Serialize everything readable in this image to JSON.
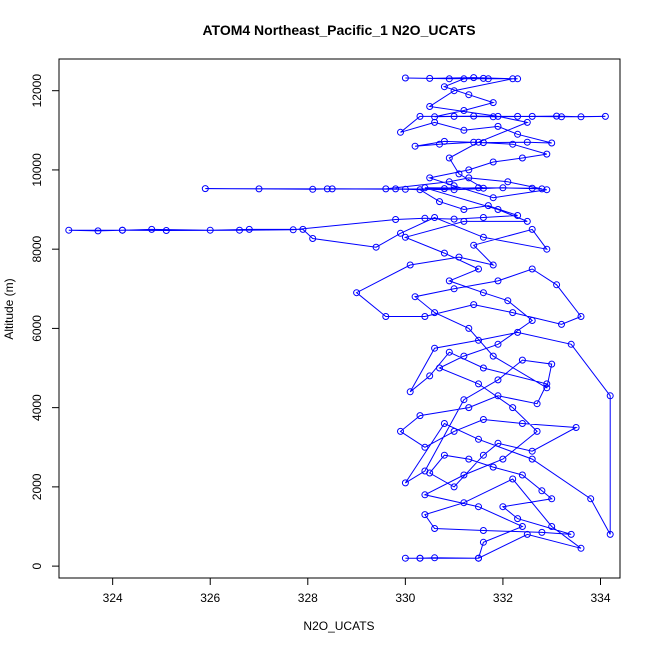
{
  "chart_data": {
    "type": "line",
    "title": "ATOM4 Northeast_Pacific_1 N2O_UCATS",
    "xlabel": "N2O_UCATS",
    "ylabel": "Altitude (m)",
    "xlim": [
      322.9,
      334.4
    ],
    "ylim": [
      -300,
      12800
    ],
    "xticks": [
      324,
      326,
      328,
      330,
      332,
      334
    ],
    "yticks": [
      0,
      2000,
      4000,
      6000,
      8000,
      10000,
      12000
    ],
    "grid": false,
    "legend": "none",
    "series_color": "#0000ff",
    "marker": "open-circle",
    "series": [
      {
        "points": [
          [
            330.0,
            200
          ],
          [
            330.3,
            200
          ],
          [
            330.6,
            210
          ],
          [
            331.5,
            200
          ],
          [
            332.5,
            800
          ],
          [
            333.6,
            450
          ],
          [
            333.0,
            1000
          ],
          [
            332.2,
            2200
          ],
          [
            331.2,
            1600
          ],
          [
            330.4,
            1300
          ],
          [
            330.6,
            950
          ],
          [
            331.6,
            900
          ],
          [
            332.8,
            850
          ],
          [
            333.4,
            800
          ],
          [
            332.3,
            1200
          ],
          [
            332.0,
            1500
          ],
          [
            333.0,
            1700
          ],
          [
            332.8,
            1900
          ],
          [
            332.4,
            2300
          ],
          [
            331.8,
            2500
          ],
          [
            331.3,
            2700
          ],
          [
            330.8,
            2800
          ],
          [
            330.5,
            2350
          ],
          [
            331.0,
            2000
          ],
          [
            331.6,
            2800
          ],
          [
            331.9,
            3100
          ],
          [
            332.6,
            2900
          ],
          [
            333.5,
            3500
          ],
          [
            332.4,
            3600
          ],
          [
            331.6,
            3700
          ],
          [
            331.0,
            3400
          ],
          [
            330.4,
            3000
          ],
          [
            329.9,
            3400
          ],
          [
            330.3,
            3800
          ],
          [
            331.3,
            4000
          ],
          [
            331.9,
            4300
          ],
          [
            332.7,
            4100
          ],
          [
            332.9,
            4600
          ],
          [
            331.6,
            5000
          ],
          [
            330.9,
            5400
          ],
          [
            330.5,
            4800
          ],
          [
            330.1,
            4400
          ],
          [
            330.6,
            5500
          ],
          [
            331.5,
            5700
          ],
          [
            332.3,
            5900
          ],
          [
            333.4,
            5600
          ],
          [
            334.2,
            4300
          ],
          [
            334.2,
            800
          ],
          [
            333.8,
            1700
          ],
          [
            332.6,
            2700
          ],
          [
            331.5,
            3200
          ],
          [
            330.8,
            3600
          ],
          [
            330.0,
            2100
          ],
          [
            330.4,
            2400
          ],
          [
            331.2,
            4200
          ],
          [
            331.9,
            4700
          ],
          [
            332.4,
            5200
          ],
          [
            333.0,
            5100
          ],
          [
            332.9,
            4500
          ],
          [
            331.8,
            5300
          ],
          [
            331.3,
            6000
          ],
          [
            330.6,
            6400
          ],
          [
            330.2,
            6800
          ],
          [
            331.0,
            7000
          ],
          [
            331.9,
            7200
          ],
          [
            332.6,
            7500
          ],
          [
            333.1,
            7100
          ],
          [
            333.6,
            6300
          ],
          [
            333.2,
            6100
          ],
          [
            332.2,
            6400
          ],
          [
            331.4,
            6600
          ],
          [
            330.4,
            6300
          ],
          [
            329.6,
            6300
          ],
          [
            329.0,
            6900
          ],
          [
            330.1,
            7600
          ],
          [
            331.1,
            7800
          ],
          [
            331.8,
            7600
          ],
          [
            331.4,
            8100
          ],
          [
            332.6,
            8500
          ],
          [
            332.9,
            8000
          ],
          [
            331.6,
            8300
          ],
          [
            330.6,
            8800
          ],
          [
            329.9,
            8400
          ],
          [
            329.4,
            8050
          ],
          [
            328.1,
            8270
          ],
          [
            327.9,
            8500
          ],
          [
            326.8,
            8500
          ],
          [
            326.0,
            8480
          ],
          [
            324.8,
            8500
          ],
          [
            324.2,
            8480
          ],
          [
            323.7,
            8460
          ],
          [
            323.1,
            8480
          ],
          [
            324.2,
            8480
          ],
          [
            325.1,
            8470
          ],
          [
            326.6,
            8480
          ],
          [
            327.7,
            8490
          ],
          [
            329.8,
            8750
          ],
          [
            330.4,
            8780
          ],
          [
            331.0,
            8760
          ],
          [
            331.6,
            8800
          ],
          [
            332.3,
            8850
          ],
          [
            331.7,
            9100
          ],
          [
            331.2,
            9000
          ],
          [
            330.7,
            9200
          ],
          [
            330.3,
            9500
          ],
          [
            329.8,
            9520
          ],
          [
            331.0,
            9500
          ],
          [
            332.0,
            9550
          ],
          [
            332.8,
            9520
          ],
          [
            332.1,
            9700
          ],
          [
            331.3,
            9800
          ],
          [
            330.9,
            9700
          ],
          [
            329.6,
            9520
          ],
          [
            328.5,
            9520
          ],
          [
            328.1,
            9510
          ],
          [
            327.0,
            9520
          ],
          [
            325.9,
            9530
          ],
          [
            328.4,
            9520
          ],
          [
            330.0,
            9510
          ],
          [
            330.8,
            9530
          ],
          [
            331.5,
            9550
          ],
          [
            332.6,
            9540
          ],
          [
            332.9,
            9500
          ],
          [
            331.8,
            9300
          ],
          [
            331.0,
            9600
          ],
          [
            330.5,
            9800
          ],
          [
            331.3,
            10000
          ],
          [
            331.8,
            10200
          ],
          [
            332.4,
            10300
          ],
          [
            332.9,
            10400
          ],
          [
            332.2,
            10650
          ],
          [
            331.4,
            10700
          ],
          [
            330.7,
            10650
          ],
          [
            330.2,
            10600
          ],
          [
            330.8,
            10720
          ],
          [
            331.6,
            10690
          ],
          [
            332.5,
            10700
          ],
          [
            333.0,
            10680
          ],
          [
            332.3,
            10900
          ],
          [
            331.9,
            11100
          ],
          [
            331.2,
            11000
          ],
          [
            330.6,
            11200
          ],
          [
            329.9,
            10950
          ],
          [
            330.3,
            11350
          ],
          [
            331.0,
            11350
          ],
          [
            331.8,
            11340
          ],
          [
            332.6,
            11350
          ],
          [
            333.1,
            11360
          ],
          [
            333.6,
            11340
          ],
          [
            334.1,
            11350
          ],
          [
            333.2,
            11340
          ],
          [
            332.3,
            11350
          ],
          [
            331.4,
            11360
          ],
          [
            330.6,
            11340
          ],
          [
            331.2,
            11500
          ],
          [
            331.8,
            11700
          ],
          [
            331.3,
            11900
          ],
          [
            330.8,
            12100
          ],
          [
            331.2,
            12300
          ],
          [
            331.7,
            12300
          ],
          [
            332.3,
            12300
          ],
          [
            331.6,
            12310
          ],
          [
            330.9,
            12300
          ],
          [
            330.0,
            12320
          ],
          [
            330.5,
            12310
          ],
          [
            331.4,
            12330
          ],
          [
            332.2,
            12300
          ],
          [
            331.0,
            12000
          ],
          [
            330.5,
            11600
          ],
          [
            331.9,
            11350
          ],
          [
            332.5,
            11200
          ],
          [
            331.5,
            10700
          ],
          [
            330.9,
            10300
          ],
          [
            331.1,
            9900
          ],
          [
            331.6,
            9540
          ],
          [
            330.4,
            9550
          ],
          [
            331.9,
            9000
          ],
          [
            332.5,
            8700
          ],
          [
            331.2,
            8700
          ],
          [
            330.0,
            8300
          ],
          [
            330.8,
            7900
          ],
          [
            331.5,
            7500
          ],
          [
            330.9,
            7200
          ],
          [
            331.6,
            6900
          ],
          [
            332.1,
            6700
          ],
          [
            332.6,
            6200
          ],
          [
            331.9,
            5600
          ],
          [
            331.2,
            5300
          ],
          [
            330.7,
            5000
          ],
          [
            331.5,
            4600
          ],
          [
            332.2,
            4000
          ],
          [
            332.7,
            3400
          ],
          [
            332.0,
            2700
          ],
          [
            331.2,
            2300
          ],
          [
            330.4,
            1800
          ],
          [
            331.5,
            1500
          ],
          [
            332.4,
            1000
          ],
          [
            331.6,
            600
          ],
          [
            331.5,
            200
          ],
          [
            330.3,
            200
          ]
        ]
      }
    ]
  }
}
